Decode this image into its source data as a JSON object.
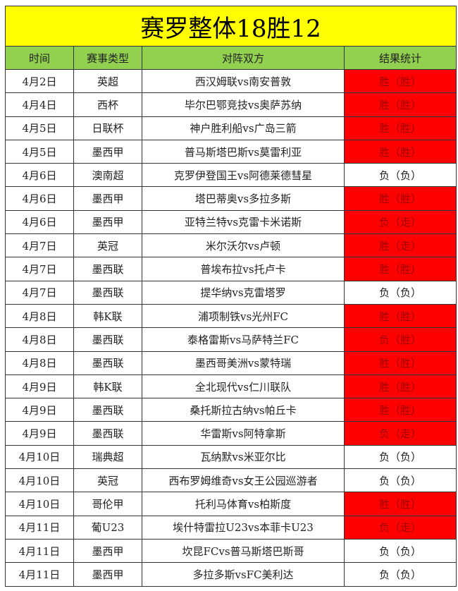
{
  "title": "赛罗整体18胜12",
  "columns": [
    "时间",
    "赛事类型",
    "对阵双方",
    "结果统计"
  ],
  "highlight_color": "#ff0000",
  "rows": [
    {
      "date": "4月2日",
      "league": "英超",
      "match": "西汉姆联vs南安普敦",
      "result": "胜（胜）",
      "hl": true
    },
    {
      "date": "4月4日",
      "league": "西杯",
      "match": "毕尔巴鄂竞技vs奥萨苏纳",
      "result": "胜（胜）",
      "hl": true
    },
    {
      "date": "4月5日",
      "league": "日联杯",
      "match": "神户胜利船vs广岛三箭",
      "result": "胜（胜）",
      "hl": true
    },
    {
      "date": "4月5日",
      "league": "墨西甲",
      "match": "普马斯塔巴斯vs莫雷利亚",
      "result": "胜（胜）",
      "hl": true
    },
    {
      "date": "4月6日",
      "league": "澳南超",
      "match": "克罗伊登国王vs阿德莱德彗星",
      "result": "负（负）",
      "hl": false
    },
    {
      "date": "4月6日",
      "league": "墨西甲",
      "match": "塔巴蒂奥vs多拉多斯",
      "result": "胜（胜）",
      "hl": true
    },
    {
      "date": "4月6日",
      "league": "墨西甲",
      "match": "亚特兰特vs克雷卡米诺斯",
      "result": "负（走）",
      "hl": true
    },
    {
      "date": "4月7日",
      "league": "英冠",
      "match": "米尔沃尔vs卢顿",
      "result": "胜（走）",
      "hl": true
    },
    {
      "date": "4月7日",
      "league": "墨西联",
      "match": "普埃布拉vs托卢卡",
      "result": "胜（胜）",
      "hl": true
    },
    {
      "date": "4月7日",
      "league": "墨西联",
      "match": "提华纳vs克雷塔罗",
      "result": "负（负）",
      "hl": false
    },
    {
      "date": "4月8日",
      "league": "韩K联",
      "match": "浦项制铁vs光州FC",
      "result": "胜（胜）",
      "hl": true
    },
    {
      "date": "4月8日",
      "league": "墨西联",
      "match": "泰格雷斯vs马萨特兰FC",
      "result": "负（胜）",
      "hl": true
    },
    {
      "date": "4月8日",
      "league": "墨西联",
      "match": "墨西哥美洲vs蒙特瑞",
      "result": "胜（胜）",
      "hl": true
    },
    {
      "date": "4月9日",
      "league": "韩K联",
      "match": "全北现代vs仁川联队",
      "result": "胜（胜）",
      "hl": true
    },
    {
      "date": "4月9日",
      "league": "墨西联",
      "match": "桑托斯拉古纳vs帕丘卡",
      "result": "胜（胜）",
      "hl": true
    },
    {
      "date": "4月9日",
      "league": "墨西联",
      "match": "华雷斯vs阿特拿斯",
      "result": "负（走）",
      "hl": true
    },
    {
      "date": "4月10日",
      "league": "瑞典超",
      "match": "瓦纳默vs米亚尔比",
      "result": "负（负）",
      "hl": false
    },
    {
      "date": "4月10日",
      "league": "英冠",
      "match": "西布罗姆维奇vs女王公园巡游者",
      "result": "负（负）",
      "hl": false
    },
    {
      "date": "4月10日",
      "league": "哥伦甲",
      "match": "托利马体育vs柏斯度",
      "result": "胜（胜）",
      "hl": true
    },
    {
      "date": "4月11日",
      "league": "葡U23",
      "match": "埃什特雷拉U23vs本菲卡U23",
      "result": "负（走）",
      "hl": true
    },
    {
      "date": "4月11日",
      "league": "墨西甲",
      "match": "坎昆FCvs普马斯塔巴斯哥",
      "result": "负（负）",
      "hl": false
    },
    {
      "date": "4月11日",
      "league": "墨西甲",
      "match": "多拉多斯vsFC美利达",
      "result": "负（负）",
      "hl": false
    }
  ]
}
